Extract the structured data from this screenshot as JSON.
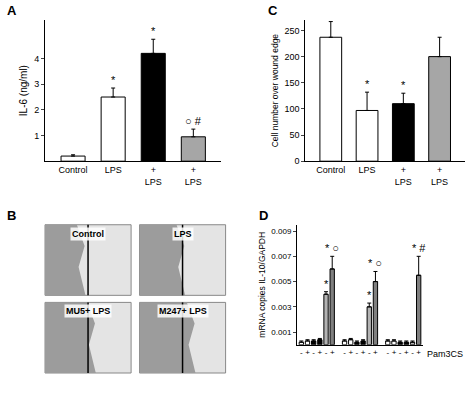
{
  "chart_data": [
    {
      "panel": "A",
      "type": "bar",
      "y_label": "IL-6 (ng/ml)",
      "categories": [
        "Control",
        "LPS",
        "+ LPS",
        "+ LPS"
      ],
      "values": [
        0.2,
        2.5,
        4.2,
        0.95
      ],
      "errors": [
        0.05,
        0.35,
        0.55,
        0.3
      ],
      "colors": [
        "#ffffff",
        "#ffffff",
        "#000000",
        "#a6a6a6"
      ],
      "ylim": [
        0,
        5.5
      ],
      "yticks": [
        1,
        2,
        3,
        4
      ],
      "grid": false,
      "annotations": [
        {
          "index": 1,
          "text": "*"
        },
        {
          "index": 2,
          "text": "*"
        },
        {
          "index": 3,
          "text": "○ #"
        }
      ]
    },
    {
      "panel": "C",
      "type": "bar",
      "y_label": "Cell number over wound edge",
      "categories": [
        "Control",
        "LPS",
        "+ LPS",
        "+ LPS"
      ],
      "values": [
        237,
        97,
        110,
        200
      ],
      "errors": [
        30,
        35,
        20,
        37
      ],
      "colors": [
        "#ffffff",
        "#ffffff",
        "#000000",
        "#a6a6a6"
      ],
      "ylim": [
        0,
        270
      ],
      "yticks": [
        0,
        50,
        100,
        150,
        200,
        250
      ],
      "grid": false,
      "annotations": [
        {
          "index": 1,
          "text": "*"
        },
        {
          "index": 2,
          "text": "*"
        }
      ]
    },
    {
      "panel": "D",
      "type": "bar",
      "y_label": "mRNA copies IL-10/GAPDH",
      "x_label": "Pam3CS",
      "categories": [
        "-",
        "+",
        "-",
        "+",
        "-",
        "+",
        "-",
        "+",
        "-",
        "+",
        "-",
        "+",
        "-",
        "+",
        "-",
        "+",
        "-",
        "+"
      ],
      "values": [
        0.0002,
        0.0003,
        0.0003,
        0.0004,
        0.004,
        0.006,
        0.0003,
        0.0004,
        0.0002,
        0.0003,
        0.003,
        0.005,
        0.0003,
        0.0003,
        0.0002,
        0.0002,
        0.0002,
        0.0055
      ],
      "errors": [
        0.0001,
        0.0001,
        0.0001,
        0.0001,
        0.0002,
        0.001,
        0.0001,
        0.0001,
        0.0001,
        0.0001,
        0.0003,
        0.0008,
        0.0001,
        0.0001,
        0.0001,
        0.0001,
        0.0001,
        0.0015
      ],
      "colors": [
        "#ffffff",
        "#ffffff",
        "#000000",
        "#000000",
        "#b3b3b3",
        "#7f7f7f",
        "#ffffff",
        "#ffffff",
        "#000000",
        "#000000",
        "#b3b3b3",
        "#7f7f7f",
        "#ffffff",
        "#ffffff",
        "#000000",
        "#000000",
        "#b3b3b3",
        "#7f7f7f"
      ],
      "ylim": [
        0,
        0.0095
      ],
      "yticks": [
        0.001,
        0.003,
        0.005,
        0.007,
        0.009
      ],
      "grid": false,
      "annotations": [
        {
          "index": 4,
          "text": "*"
        },
        {
          "index": 5,
          "text": "* ○"
        },
        {
          "index": 10,
          "text": "*"
        },
        {
          "index": 11,
          "text": "* ○"
        },
        {
          "index": 17,
          "text": "* #"
        }
      ]
    }
  ],
  "images": {
    "panel": "B",
    "tiles": [
      {
        "label": "Control"
      },
      {
        "label": "LPS"
      },
      {
        "label": "MU5+ LPS"
      },
      {
        "label": "M247+ LPS"
      }
    ]
  }
}
